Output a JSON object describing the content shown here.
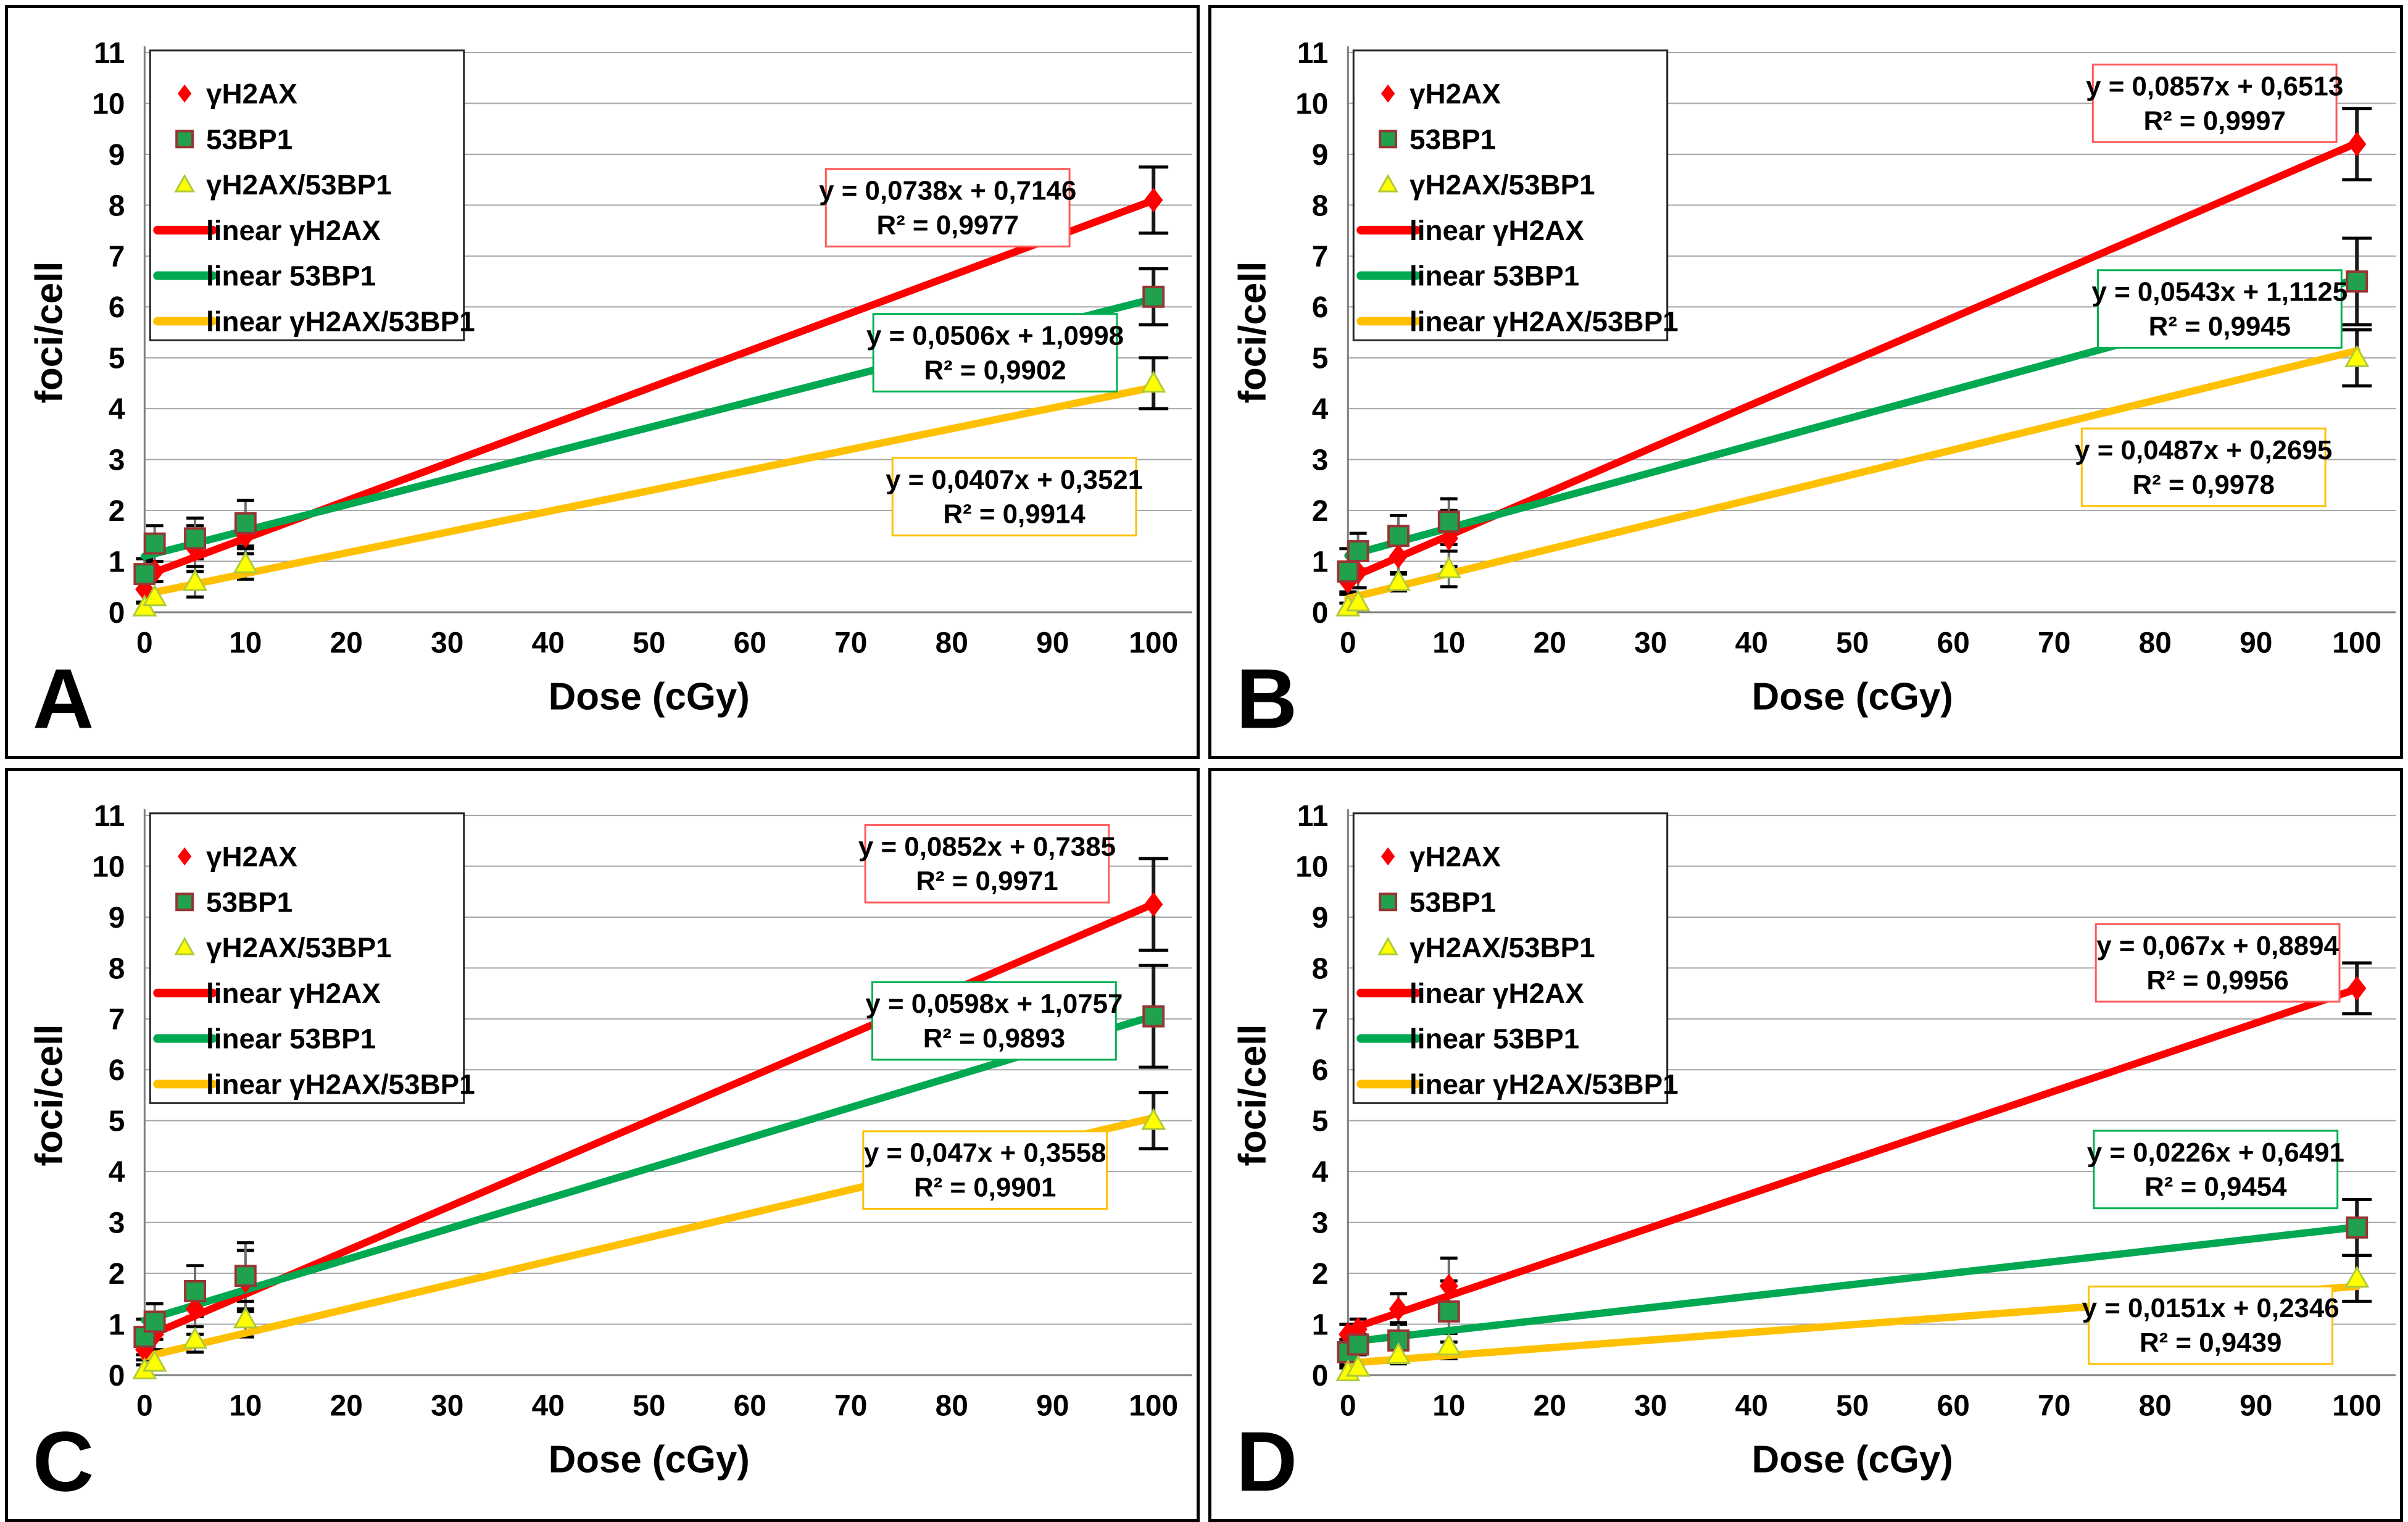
{
  "figure": {
    "xlabel": "Dose (cGy)",
    "ylabel": "foci/cell",
    "xlim": [
      0,
      100
    ],
    "ylim": [
      0,
      11
    ],
    "xticks": [
      0,
      10,
      20,
      30,
      40,
      50,
      60,
      70,
      80,
      90,
      100
    ],
    "yticks": [
      0,
      1,
      2,
      3,
      4,
      5,
      6,
      7,
      8,
      9,
      10,
      11
    ],
    "grid": "on",
    "legend_position": "top-left",
    "legend": [
      {
        "label": "γH2AX",
        "marker": "diamond"
      },
      {
        "label": "53BP1",
        "marker": "square"
      },
      {
        "label": "γH2AX/53BP1",
        "marker": "triangle"
      },
      {
        "label": "linear γH2AX",
        "marker": "line-red"
      },
      {
        "label": "linear 53BP1",
        "marker": "line-green"
      },
      {
        "label": "linear γH2AX/53BP1",
        "marker": "line-gold"
      }
    ],
    "colors": {
      "red": "#FF0000",
      "red_box_border": "#FF5A5A",
      "green_line": "#00A851",
      "green_fill": "#21A14D",
      "green_edge": "#963634",
      "green_box_border": "#00B050",
      "gold": "#FFC000",
      "yellow_fill": "#FFFF00",
      "yellow_edge": "#AFC93C",
      "gold_box_border": "#FFC000",
      "grid": "#A6A6A6",
      "axis": "#7F7F7F",
      "errbar_stem": "#6E6E6E",
      "errbar_cap": "#000000",
      "legend_border": "#262626"
    }
  },
  "chart_data": [
    {
      "type": "scatter",
      "label": "A",
      "x": [
        0,
        1,
        5,
        10,
        100
      ],
      "series": [
        {
          "name": "γH2AX",
          "marker": "diamond",
          "y": [
            0.45,
            0.8,
            1.25,
            1.5,
            8.1
          ],
          "err": [
            0.25,
            0.2,
            0.45,
            0.35,
            0.65
          ]
        },
        {
          "name": "53BP1",
          "marker": "square",
          "y": [
            0.75,
            1.35,
            1.45,
            1.75,
            6.2
          ],
          "err": [
            0.3,
            0.35,
            0.4,
            0.45,
            0.55
          ]
        },
        {
          "name": "γH2AX/53BP1",
          "marker": "triangle",
          "y": [
            0.1,
            0.3,
            0.6,
            0.95,
            4.5
          ],
          "err": [
            0.08,
            0.12,
            0.3,
            0.3,
            0.5
          ]
        }
      ],
      "fits": [
        {
          "name": "linear γH2AX",
          "color_key": "red",
          "slope": 0.0738,
          "intercept": 0.7146,
          "eq": "y = 0,0738x + 0,7146",
          "r2": "R² = 0,9977",
          "box_cx": 79.6,
          "box_cy": 7.95
        },
        {
          "name": "linear 53BP1",
          "color_key": "green",
          "slope": 0.0506,
          "intercept": 1.0998,
          "eq": "y = 0,0506x + 1,0998",
          "r2": "R² = 0,9902",
          "box_cx": 84.3,
          "box_cy": 5.1
        },
        {
          "name": "linear γH2AX/53BP1",
          "color_key": "gold",
          "slope": 0.0407,
          "intercept": 0.3521,
          "eq": "y = 0,0407x + 0,3521",
          "r2": "R² = 0,9914",
          "box_cx": 86.2,
          "box_cy": 2.27
        }
      ]
    },
    {
      "type": "scatter",
      "label": "B",
      "x": [
        0,
        1,
        5,
        10,
        100
      ],
      "series": [
        {
          "name": "γH2AX",
          "marker": "diamond",
          "y": [
            0.6,
            0.78,
            1.1,
            1.45,
            9.2
          ],
          "err": [
            0.2,
            0.3,
            0.35,
            0.55,
            0.7
          ]
        },
        {
          "name": "53BP1",
          "marker": "square",
          "y": [
            0.8,
            1.2,
            1.5,
            1.78,
            6.5
          ],
          "err": [
            0.45,
            0.35,
            0.4,
            0.45,
            0.85
          ]
        },
        {
          "name": "γH2AX/53BP1",
          "marker": "triangle",
          "y": [
            0.1,
            0.2,
            0.6,
            0.85,
            5.0
          ],
          "err": [
            0.08,
            0.12,
            0.18,
            0.35,
            0.55
          ]
        }
      ],
      "fits": [
        {
          "name": "linear γH2AX",
          "color_key": "red",
          "slope": 0.0857,
          "intercept": 0.6513,
          "eq": "y = 0,0857x + 0,6513",
          "r2": "R² = 0,9997",
          "box_cx": 85.9,
          "box_cy": 10.0
        },
        {
          "name": "linear 53BP1",
          "color_key": "green",
          "slope": 0.0543,
          "intercept": 1.1125,
          "eq": "y = 0,0543x + 1,1125",
          "r2": "R² = 0,9945",
          "box_cx": 86.4,
          "box_cy": 5.96
        },
        {
          "name": "linear γH2AX/53BP1",
          "color_key": "gold",
          "slope": 0.0487,
          "intercept": 0.2695,
          "eq": "y = 0,0487x + 0,2695",
          "r2": "R² = 0,9978",
          "box_cx": 84.8,
          "box_cy": 2.85
        }
      ]
    },
    {
      "type": "scatter",
      "label": "C",
      "x": [
        0,
        1,
        5,
        10,
        100
      ],
      "series": [
        {
          "name": "γH2AX",
          "marker": "diamond",
          "y": [
            0.5,
            0.8,
            1.3,
            1.85,
            9.25
          ],
          "err": [
            0.2,
            0.3,
            0.5,
            0.6,
            0.9
          ]
        },
        {
          "name": "53BP1",
          "marker": "square",
          "y": [
            0.75,
            1.05,
            1.65,
            1.95,
            7.05
          ],
          "err": [
            0.35,
            0.35,
            0.5,
            0.65,
            1.0
          ]
        },
        {
          "name": "γH2AX/53BP1",
          "marker": "triangle",
          "y": [
            0.1,
            0.25,
            0.7,
            1.1,
            5.0
          ],
          "err": [
            0.1,
            0.15,
            0.25,
            0.35,
            0.55
          ]
        }
      ],
      "fits": [
        {
          "name": "linear γH2AX",
          "color_key": "red",
          "slope": 0.0852,
          "intercept": 0.7385,
          "eq": "y = 0,0852x + 0,7385",
          "r2": "R² = 0,9971",
          "box_cx": 83.5,
          "box_cy": 10.05
        },
        {
          "name": "linear 53BP1",
          "color_key": "green",
          "slope": 0.0598,
          "intercept": 1.0757,
          "eq": "y = 0,0598x + 1,0757",
          "r2": "R² = 0,9893",
          "box_cx": 84.2,
          "box_cy": 6.96
        },
        {
          "name": "linear γH2AX/53BP1",
          "color_key": "gold",
          "slope": 0.047,
          "intercept": 0.3558,
          "eq": "y = 0,047x + 0,3558",
          "r2": "R² = 0,9901",
          "box_cx": 83.3,
          "box_cy": 4.03
        }
      ]
    },
    {
      "type": "scatter",
      "label": "D",
      "x": [
        0,
        1,
        5,
        10,
        100
      ],
      "series": [
        {
          "name": "γH2AX",
          "marker": "diamond",
          "y": [
            0.8,
            0.9,
            1.3,
            1.75,
            7.6
          ],
          "err": [
            0.2,
            0.2,
            0.3,
            0.55,
            0.5
          ]
        },
        {
          "name": "53BP1",
          "marker": "square",
          "y": [
            0.45,
            0.6,
            0.68,
            1.25,
            2.9
          ],
          "err": [
            0.25,
            0.2,
            0.35,
            0.6,
            0.55
          ]
        },
        {
          "name": "γH2AX/53BP1",
          "marker": "triangle",
          "y": [
            0.06,
            0.15,
            0.4,
            0.57,
            1.9
          ],
          "err": [
            0.08,
            0.1,
            0.18,
            0.25,
            0.45
          ]
        }
      ],
      "fits": [
        {
          "name": "linear γH2AX",
          "color_key": "red",
          "slope": 0.067,
          "intercept": 0.8894,
          "eq": "y = 0,067x + 0,8894",
          "r2": "R² = 0,9956",
          "box_cx": 86.2,
          "box_cy": 8.1
        },
        {
          "name": "linear 53BP1",
          "color_key": "green",
          "slope": 0.0226,
          "intercept": 0.6491,
          "eq": "y = 0,0226x + 0,6491",
          "r2": "R² = 0,9454",
          "box_cx": 86.0,
          "box_cy": 4.04
        },
        {
          "name": "linear γH2AX/53BP1",
          "color_key": "gold",
          "slope": 0.0151,
          "intercept": 0.2346,
          "eq": "y = 0,0151x + 0,2346",
          "r2": "R² = 0,9439",
          "box_cx": 85.5,
          "box_cy": 0.98
        }
      ]
    }
  ]
}
